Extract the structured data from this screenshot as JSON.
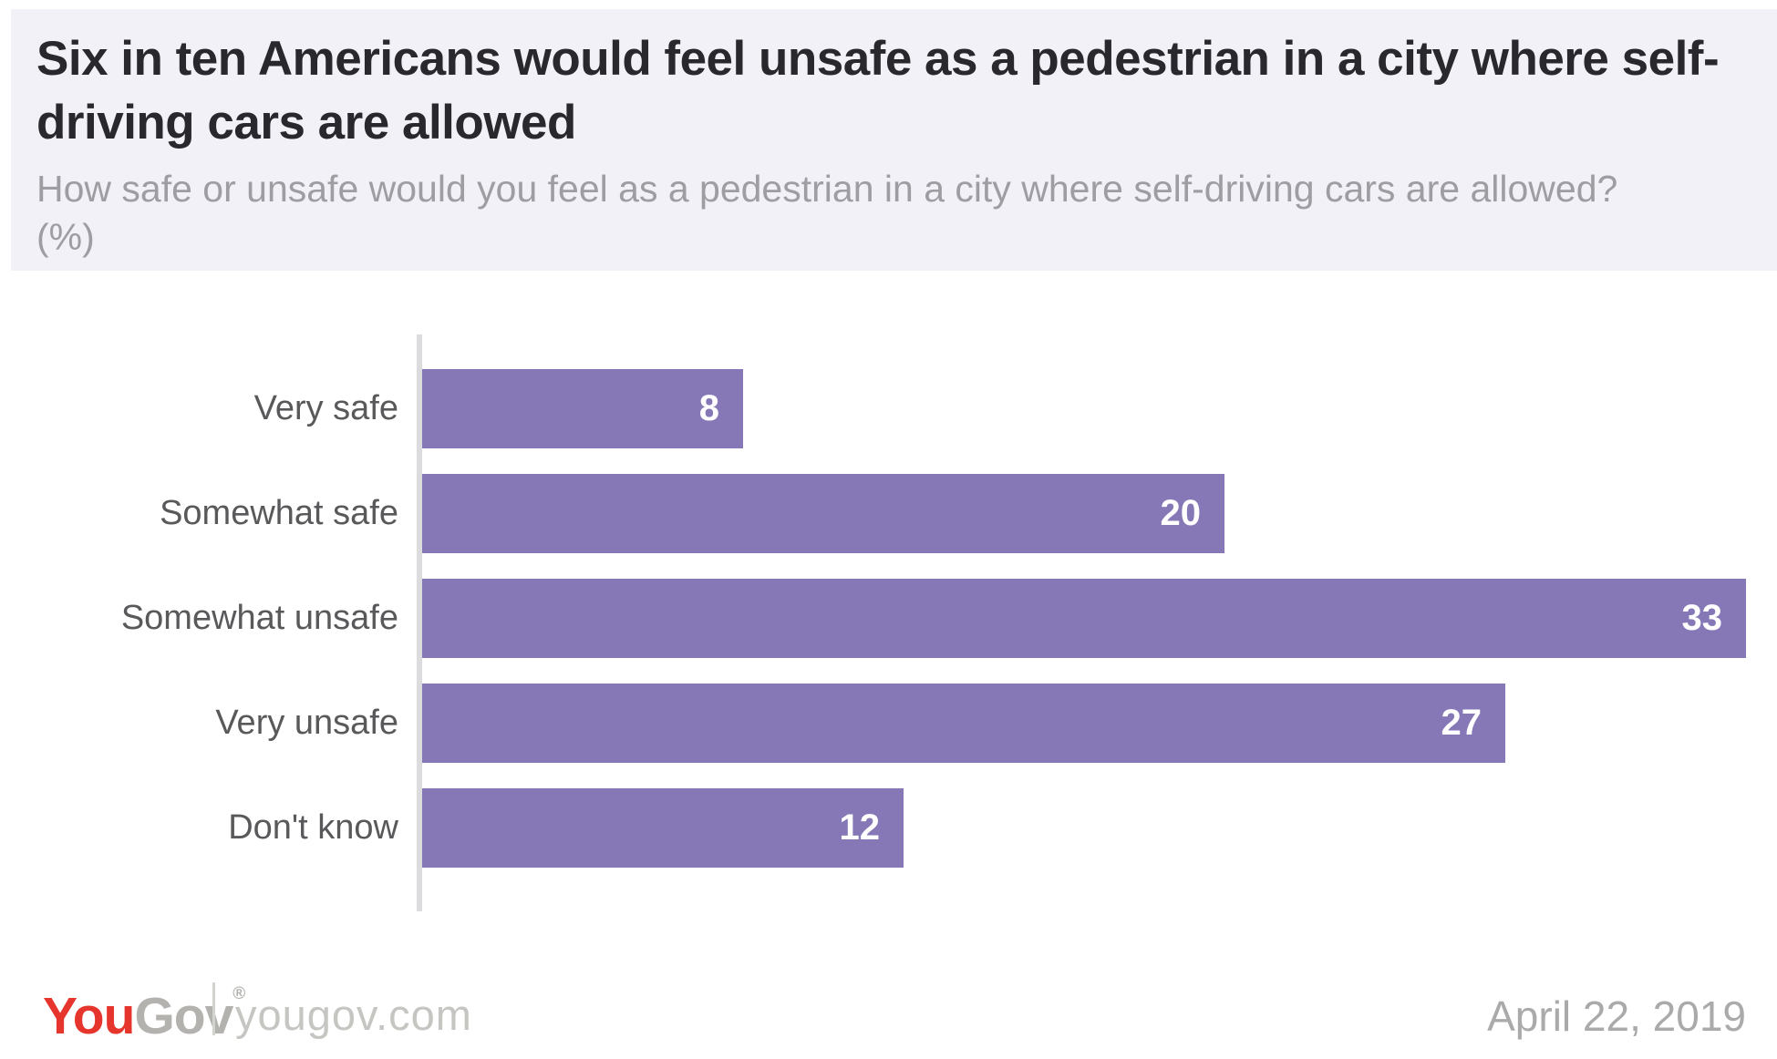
{
  "header": {
    "title": "Six in ten Americans would feel unsafe as a pedestrian in a city where self-driving cars are allowed",
    "subtitle": "How safe or unsafe would you feel as a pedestrian in a city where self-driving cars are allowed? (%)"
  },
  "chart_data": {
    "type": "bar",
    "orientation": "horizontal",
    "categories": [
      "Very safe",
      "Somewhat safe",
      "Somewhat unsafe",
      "Very unsafe",
      "Don't know"
    ],
    "values": [
      8,
      20,
      33,
      27,
      12
    ],
    "title": "Six in ten Americans would feel unsafe as a pedestrian in a city where self-driving cars are allowed",
    "xlabel": "",
    "ylabel": "",
    "xlim": [
      0,
      33
    ],
    "grid": false,
    "legend": false,
    "value_labels": "inside-end"
  },
  "footer": {
    "logo_you": "You",
    "logo_gov": "Gov",
    "logo_mark": "®",
    "site": "yougov.com",
    "date": "April 22, 2019"
  },
  "colors": {
    "bar": "#8678b7",
    "bar_value_text": "#ffffff",
    "header_bg": "#f2f1f7",
    "title_text": "#29292d",
    "subtitle_text": "#9d9da2",
    "category_label_text": "#59595c",
    "axis_line": "#dcdcde",
    "logo_red": "#e6352c",
    "logo_gray": "#b3b2ae",
    "site_text": "#c5c5c1",
    "date_text": "#aaaaaa"
  }
}
